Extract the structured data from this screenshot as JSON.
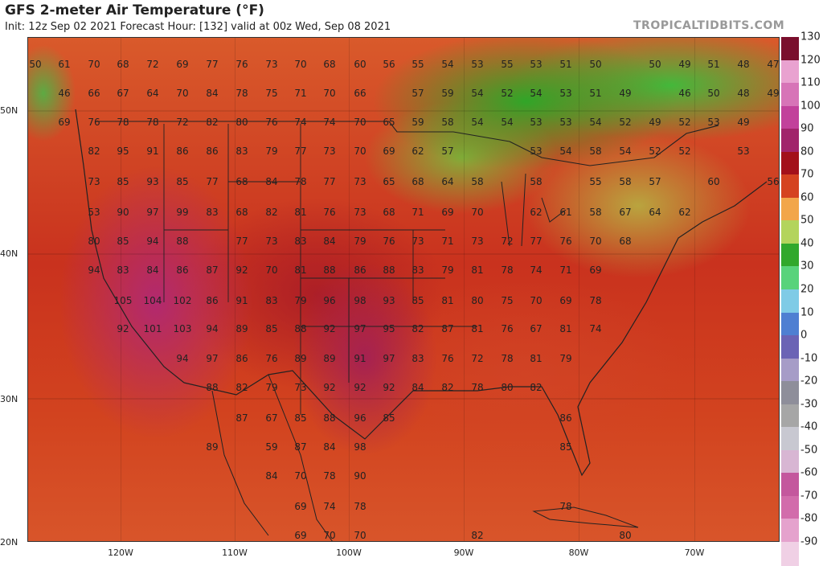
{
  "header": {
    "title": "GFS 2-meter Air Temperature (°F)",
    "subtitle": "Init: 12z Sep 02 2021   Forecast Hour: [132]   valid at 00z Wed, Sep 08 2021",
    "site": "TROPICALTIDBITS.COM"
  },
  "axes": {
    "lat_labels": [
      "50N",
      "40N",
      "30N",
      "20N"
    ],
    "lon_labels": [
      "120W",
      "110W",
      "100W",
      "90W",
      "80W",
      "70W"
    ]
  },
  "colorbar": {
    "ticks": [
      "130",
      "120",
      "110",
      "100",
      "90",
      "80",
      "70",
      "60",
      "50",
      "40",
      "30",
      "20",
      "10",
      "0",
      "-10",
      "-20",
      "-30",
      "-40",
      "-50",
      "-60",
      "-70",
      "-80",
      "-90"
    ],
    "colors": [
      "#7a0f2d",
      "#e9a2d0",
      "#d774b7",
      "#c2419b",
      "#a1246b",
      "#a3101a",
      "#d54320",
      "#f2a64a",
      "#b3d45c",
      "#31a82c",
      "#58d37b",
      "#7fcbe6",
      "#4f7fd2",
      "#6b63b5",
      "#a69cc7",
      "#8e8e9a",
      "#a6a6a6",
      "#c8c8d1",
      "#d8b6d3",
      "#c4579d",
      "#d26cab",
      "#e5a2cd",
      "#f0d0e5"
    ]
  },
  "temps": [
    [
      "50",
      44,
      80
    ],
    [
      "61",
      80,
      80
    ],
    [
      "70",
      117,
      80
    ],
    [
      "68",
      153,
      80
    ],
    [
      "72",
      190,
      80
    ],
    [
      "69",
      227,
      80
    ],
    [
      "77",
      264,
      80
    ],
    [
      "76",
      301,
      80
    ],
    [
      "73",
      338,
      80
    ],
    [
      "70",
      374,
      80
    ],
    [
      "68",
      410,
      80
    ],
    [
      "60",
      448,
      80
    ],
    [
      "56",
      484,
      80
    ],
    [
      "55",
      520,
      80
    ],
    [
      "54",
      557,
      80
    ],
    [
      "53",
      594,
      80
    ],
    [
      "55",
      631,
      80
    ],
    [
      "53",
      667,
      80
    ],
    [
      "51",
      704,
      80
    ],
    [
      "50",
      741,
      80
    ],
    [
      "50",
      815,
      80
    ],
    [
      "49",
      852,
      80
    ],
    [
      "51",
      888,
      80
    ],
    [
      "48",
      925,
      80
    ],
    [
      "47",
      962,
      80
    ],
    [
      "46",
      80,
      116
    ],
    [
      "66",
      117,
      116
    ],
    [
      "67",
      153,
      116
    ],
    [
      "64",
      190,
      116
    ],
    [
      "70",
      227,
      116
    ],
    [
      "84",
      264,
      116
    ],
    [
      "78",
      301,
      116
    ],
    [
      "75",
      338,
      116
    ],
    [
      "71",
      374,
      116
    ],
    [
      "70",
      410,
      116
    ],
    [
      "66",
      448,
      116
    ],
    [
      "57",
      520,
      116
    ],
    [
      "59",
      557,
      116
    ],
    [
      "54",
      594,
      116
    ],
    [
      "52",
      631,
      116
    ],
    [
      "54",
      667,
      116
    ],
    [
      "53",
      704,
      116
    ],
    [
      "51",
      741,
      116
    ],
    [
      "49",
      778,
      116
    ],
    [
      "46",
      852,
      116
    ],
    [
      "50",
      888,
      116
    ],
    [
      "48",
      925,
      116
    ],
    [
      "49",
      962,
      116
    ],
    [
      "69",
      80,
      152
    ],
    [
      "76",
      117,
      152
    ],
    [
      "78",
      153,
      152
    ],
    [
      "78",
      190,
      152
    ],
    [
      "72",
      227,
      152
    ],
    [
      "82",
      264,
      152
    ],
    [
      "80",
      301,
      152
    ],
    [
      "76",
      338,
      152
    ],
    [
      "74",
      374,
      152
    ],
    [
      "74",
      410,
      152
    ],
    [
      "70",
      448,
      152
    ],
    [
      "65",
      484,
      152
    ],
    [
      "59",
      520,
      152
    ],
    [
      "58",
      557,
      152
    ],
    [
      "54",
      594,
      152
    ],
    [
      "54",
      631,
      152
    ],
    [
      "53",
      667,
      152
    ],
    [
      "53",
      704,
      152
    ],
    [
      "54",
      741,
      152
    ],
    [
      "52",
      778,
      152
    ],
    [
      "49",
      815,
      152
    ],
    [
      "52",
      852,
      152
    ],
    [
      "53",
      888,
      152
    ],
    [
      "49",
      925,
      152
    ],
    [
      "82",
      117,
      188
    ],
    [
      "95",
      153,
      188
    ],
    [
      "91",
      190,
      188
    ],
    [
      "86",
      227,
      188
    ],
    [
      "86",
      264,
      188
    ],
    [
      "83",
      301,
      188
    ],
    [
      "79",
      338,
      188
    ],
    [
      "77",
      374,
      188
    ],
    [
      "73",
      410,
      188
    ],
    [
      "70",
      448,
      188
    ],
    [
      "69",
      484,
      188
    ],
    [
      "62",
      520,
      188
    ],
    [
      "57",
      557,
      188
    ],
    [
      "53",
      667,
      188
    ],
    [
      "54",
      704,
      188
    ],
    [
      "58",
      741,
      188
    ],
    [
      "54",
      778,
      188
    ],
    [
      "52",
      815,
      188
    ],
    [
      "52",
      852,
      188
    ],
    [
      "53",
      925,
      188
    ],
    [
      "73",
      117,
      226
    ],
    [
      "85",
      153,
      226
    ],
    [
      "93",
      190,
      226
    ],
    [
      "85",
      227,
      226
    ],
    [
      "77",
      264,
      226
    ],
    [
      "68",
      301,
      226
    ],
    [
      "84",
      338,
      226
    ],
    [
      "78",
      374,
      226
    ],
    [
      "77",
      410,
      226
    ],
    [
      "73",
      448,
      226
    ],
    [
      "65",
      484,
      226
    ],
    [
      "68",
      520,
      226
    ],
    [
      "64",
      557,
      226
    ],
    [
      "58",
      594,
      226
    ],
    [
      "58",
      667,
      226
    ],
    [
      "55",
      741,
      226
    ],
    [
      "58",
      778,
      226
    ],
    [
      "57",
      815,
      226
    ],
    [
      "60",
      888,
      226
    ],
    [
      "56",
      962,
      226
    ],
    [
      "53",
      117,
      264
    ],
    [
      "90",
      153,
      264
    ],
    [
      "97",
      190,
      264
    ],
    [
      "99",
      227,
      264
    ],
    [
      "83",
      264,
      264
    ],
    [
      "68",
      301,
      264
    ],
    [
      "82",
      338,
      264
    ],
    [
      "81",
      374,
      264
    ],
    [
      "76",
      410,
      264
    ],
    [
      "73",
      448,
      264
    ],
    [
      "68",
      484,
      264
    ],
    [
      "71",
      520,
      264
    ],
    [
      "69",
      557,
      264
    ],
    [
      "70",
      594,
      264
    ],
    [
      "62",
      667,
      264
    ],
    [
      "61",
      704,
      264
    ],
    [
      "58",
      741,
      264
    ],
    [
      "67",
      778,
      264
    ],
    [
      "64",
      815,
      264
    ],
    [
      "62",
      852,
      264
    ],
    [
      "80",
      117,
      300
    ],
    [
      "85",
      153,
      300
    ],
    [
      "94",
      190,
      300
    ],
    [
      "88",
      227,
      300
    ],
    [
      "77",
      301,
      300
    ],
    [
      "73",
      338,
      300
    ],
    [
      "83",
      374,
      300
    ],
    [
      "84",
      410,
      300
    ],
    [
      "79",
      448,
      300
    ],
    [
      "76",
      484,
      300
    ],
    [
      "73",
      520,
      300
    ],
    [
      "71",
      557,
      300
    ],
    [
      "73",
      594,
      300
    ],
    [
      "72",
      631,
      300
    ],
    [
      "77",
      667,
      300
    ],
    [
      "76",
      704,
      300
    ],
    [
      "70",
      741,
      300
    ],
    [
      "68",
      778,
      300
    ],
    [
      "94",
      117,
      336
    ],
    [
      "83",
      153,
      336
    ],
    [
      "84",
      190,
      336
    ],
    [
      "86",
      227,
      336
    ],
    [
      "87",
      264,
      336
    ],
    [
      "92",
      301,
      336
    ],
    [
      "70",
      338,
      336
    ],
    [
      "81",
      374,
      336
    ],
    [
      "88",
      410,
      336
    ],
    [
      "86",
      448,
      336
    ],
    [
      "88",
      484,
      336
    ],
    [
      "83",
      520,
      336
    ],
    [
      "79",
      557,
      336
    ],
    [
      "81",
      594,
      336
    ],
    [
      "78",
      631,
      336
    ],
    [
      "74",
      667,
      336
    ],
    [
      "71",
      704,
      336
    ],
    [
      "69",
      741,
      336
    ],
    [
      "105",
      153,
      374
    ],
    [
      "104",
      190,
      374
    ],
    [
      "102",
      227,
      374
    ],
    [
      "86",
      264,
      374
    ],
    [
      "91",
      301,
      374
    ],
    [
      "83",
      338,
      374
    ],
    [
      "79",
      374,
      374
    ],
    [
      "96",
      410,
      374
    ],
    [
      "98",
      448,
      374
    ],
    [
      "93",
      484,
      374
    ],
    [
      "85",
      520,
      374
    ],
    [
      "81",
      557,
      374
    ],
    [
      "80",
      594,
      374
    ],
    [
      "75",
      631,
      374
    ],
    [
      "70",
      667,
      374
    ],
    [
      "69",
      704,
      374
    ],
    [
      "78",
      741,
      374
    ],
    [
      "92",
      153,
      409
    ],
    [
      "101",
      190,
      409
    ],
    [
      "103",
      227,
      409
    ],
    [
      "94",
      264,
      409
    ],
    [
      "89",
      301,
      409
    ],
    [
      "85",
      338,
      409
    ],
    [
      "88",
      374,
      409
    ],
    [
      "92",
      410,
      409
    ],
    [
      "97",
      448,
      409
    ],
    [
      "95",
      484,
      409
    ],
    [
      "82",
      520,
      409
    ],
    [
      "87",
      557,
      409
    ],
    [
      "81",
      594,
      409
    ],
    [
      "76",
      631,
      409
    ],
    [
      "67",
      667,
      409
    ],
    [
      "81",
      704,
      409
    ],
    [
      "74",
      741,
      409
    ],
    [
      "94",
      227,
      446
    ],
    [
      "97",
      264,
      446
    ],
    [
      "86",
      301,
      446
    ],
    [
      "76",
      338,
      446
    ],
    [
      "89",
      374,
      446
    ],
    [
      "89",
      410,
      446
    ],
    [
      "91",
      448,
      446
    ],
    [
      "97",
      484,
      446
    ],
    [
      "83",
      520,
      446
    ],
    [
      "76",
      557,
      446
    ],
    [
      "72",
      594,
      446
    ],
    [
      "78",
      631,
      446
    ],
    [
      "81",
      667,
      446
    ],
    [
      "79",
      704,
      446
    ],
    [
      "88",
      264,
      482
    ],
    [
      "82",
      301,
      482
    ],
    [
      "79",
      338,
      482
    ],
    [
      "73",
      374,
      482
    ],
    [
      "92",
      410,
      482
    ],
    [
      "92",
      448,
      482
    ],
    [
      "92",
      484,
      482
    ],
    [
      "84",
      520,
      482
    ],
    [
      "82",
      557,
      482
    ],
    [
      "78",
      594,
      482
    ],
    [
      "80",
      631,
      482
    ],
    [
      "82",
      667,
      482
    ],
    [
      "87",
      301,
      520
    ],
    [
      "67",
      338,
      520
    ],
    [
      "85",
      374,
      520
    ],
    [
      "88",
      410,
      520
    ],
    [
      "96",
      448,
      520
    ],
    [
      "85",
      484,
      520
    ],
    [
      "86",
      704,
      520
    ],
    [
      "89",
      264,
      556
    ],
    [
      "59",
      338,
      556
    ],
    [
      "87",
      374,
      556
    ],
    [
      "84",
      410,
      556
    ],
    [
      "98",
      448,
      556
    ],
    [
      "85",
      704,
      556
    ],
    [
      "84",
      338,
      592
    ],
    [
      "70",
      374,
      592
    ],
    [
      "78",
      410,
      592
    ],
    [
      "90",
      448,
      592
    ],
    [
      "69",
      374,
      630
    ],
    [
      "74",
      410,
      630
    ],
    [
      "78",
      448,
      630
    ],
    [
      "78",
      704,
      630
    ],
    [
      "69",
      374,
      666
    ],
    [
      "70",
      410,
      666
    ],
    [
      "70",
      448,
      666
    ],
    [
      "82",
      594,
      666
    ],
    [
      "80",
      778,
      666
    ]
  ]
}
